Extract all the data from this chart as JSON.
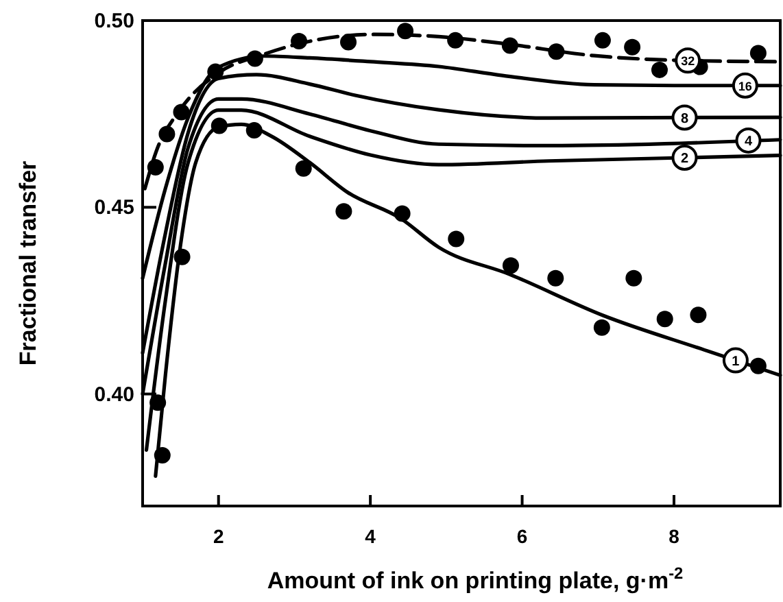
{
  "chart_data": {
    "type": "line",
    "xlabel": "Amount of ink on printing plate, g·m$^{-2}$",
    "ylabel": "Fractional transfer",
    "xlim": [
      1,
      9.4
    ],
    "ylim": [
      0.37,
      0.5
    ],
    "xticks": [
      2,
      4,
      6,
      8
    ],
    "yticks": [
      {
        "value": 0.4,
        "label": "0.40"
      },
      {
        "value": 0.45,
        "label": "0.45"
      },
      {
        "value": 0.5,
        "label": "0.50"
      }
    ],
    "grid": false,
    "series": [
      {
        "name": "32",
        "line_style": "dashed",
        "marker": "none",
        "color": "#000000",
        "x": [
          1.03,
          1.18,
          1.49,
          2.0,
          2.6,
          3.21,
          4.05,
          4.9,
          5.74,
          6.95,
          8.16,
          9.4
        ],
        "values": [
          0.455,
          0.465,
          0.476,
          0.486,
          0.491,
          0.4945,
          0.4963,
          0.4957,
          0.4939,
          0.4906,
          0.4893,
          0.489
        ]
      },
      {
        "name": "16",
        "line_style": "solid",
        "marker": "none",
        "color": "#000000",
        "x": [
          1.0,
          1.3,
          1.6,
          2.0,
          2.6,
          3.2,
          4.0,
          4.9,
          5.74,
          6.95,
          8.0,
          9.4
        ],
        "values": [
          0.431,
          0.455,
          0.474,
          0.4875,
          0.4905,
          0.49,
          0.489,
          0.4877,
          0.4853,
          0.4828,
          0.4826,
          0.4826
        ]
      },
      {
        "name": "8",
        "line_style": "solid",
        "marker": "none",
        "color": "#000000",
        "x": [
          1.0,
          1.3,
          1.6,
          2.0,
          2.5,
          3.2,
          3.8,
          4.9,
          6.35,
          9.4
        ],
        "values": [
          0.411,
          0.443,
          0.47,
          0.4845,
          0.4855,
          0.483,
          0.48,
          0.4761,
          0.4739,
          0.4741
        ]
      },
      {
        "name": "4",
        "line_style": "solid",
        "marker": "none",
        "color": "#000000",
        "x": [
          1.0,
          1.3,
          1.6,
          2.0,
          2.3,
          3.2,
          4.0,
          4.9,
          6.35,
          9.4
        ],
        "values": [
          0.4,
          0.435,
          0.466,
          0.479,
          0.479,
          0.475,
          0.4705,
          0.4669,
          0.4665,
          0.4681
        ]
      },
      {
        "name": "2",
        "line_style": "solid",
        "marker": "none",
        "color": "#000000",
        "x": [
          1.05,
          1.3,
          1.6,
          2.0,
          2.3,
          3.2,
          4.0,
          4.9,
          6.35,
          9.4
        ],
        "values": [
          0.385,
          0.425,
          0.462,
          0.476,
          0.476,
          0.469,
          0.464,
          0.4614,
          0.4624,
          0.4639
        ]
      },
      {
        "name": "1",
        "line_style": "solid",
        "marker": "none",
        "color": "#000000",
        "x": [
          1.17,
          1.3,
          1.5,
          1.7,
          2.0,
          2.3,
          2.7,
          3.2,
          3.7,
          4.4,
          4.9,
          5.84,
          7.07,
          8.4,
          9.4
        ],
        "values": [
          0.378,
          0.405,
          0.44,
          0.462,
          0.4715,
          0.4722,
          0.469,
          0.462,
          0.454,
          0.447,
          0.4393,
          0.432,
          0.421,
          0.4118,
          0.405
        ]
      },
      {
        "type": "scatter",
        "marker": "circle",
        "color": "#000000",
        "x": [
          1.17,
          1.32,
          1.51,
          1.96,
          2.48,
          3.06,
          3.71,
          4.46,
          5.12,
          5.84,
          6.45,
          7.06,
          7.45,
          7.81,
          8.34,
          9.11
        ],
        "values": [
          0.4607,
          0.4696,
          0.4755,
          0.4863,
          0.4898,
          0.4945,
          0.4942,
          0.4972,
          0.4947,
          0.4933,
          0.4917,
          0.4947,
          0.4929,
          0.4868,
          0.4876,
          0.4913
        ]
      },
      {
        "type": "scatter",
        "marker": "circle",
        "color": "#000000",
        "x": [
          1.2,
          1.26,
          1.52,
          2.01,
          2.47,
          3.12,
          3.65,
          4.42,
          5.13,
          5.85,
          6.44,
          7.05,
          7.47,
          7.88,
          8.32,
          9.11
        ],
        "values": [
          0.3977,
          0.3836,
          0.4367,
          0.4718,
          0.4706,
          0.4604,
          0.4489,
          0.4483,
          0.4415,
          0.4344,
          0.431,
          0.4178,
          0.431,
          0.4201,
          0.4212,
          0.4075
        ]
      }
    ]
  }
}
